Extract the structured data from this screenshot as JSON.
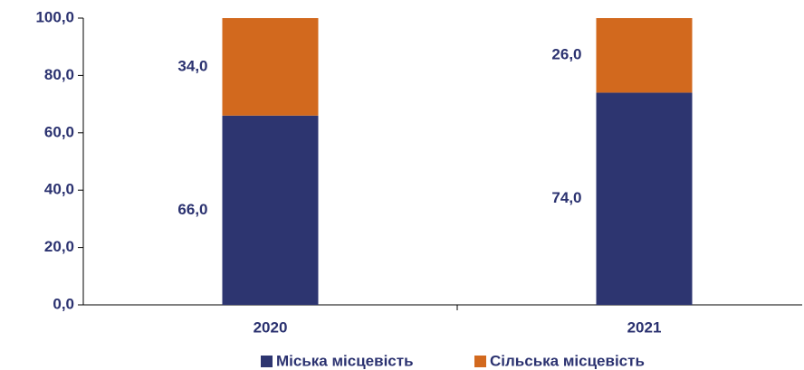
{
  "chart_data": {
    "type": "stacked_bar",
    "categories": [
      "2020",
      "2021"
    ],
    "series": [
      {
        "name": "Міська місцевість",
        "color": "#2d3570",
        "values": [
          66,
          74
        ],
        "value_labels": [
          "66,0",
          "74,0"
        ]
      },
      {
        "name": "Сільська місцевість",
        "color": "#d2691e",
        "values": [
          34,
          26
        ],
        "value_labels": [
          "34,0",
          "26,0"
        ]
      }
    ],
    "ylim": [
      0,
      100
    ],
    "yticks": [
      {
        "value": 0,
        "label": "0,0"
      },
      {
        "value": 20,
        "label": "20,0"
      },
      {
        "value": 40,
        "label": "40,0"
      },
      {
        "value": 60,
        "label": "60,0"
      },
      {
        "value": 80,
        "label": "80,0"
      },
      {
        "value": 100,
        "label": "100,0"
      }
    ],
    "legend": "bottom"
  }
}
